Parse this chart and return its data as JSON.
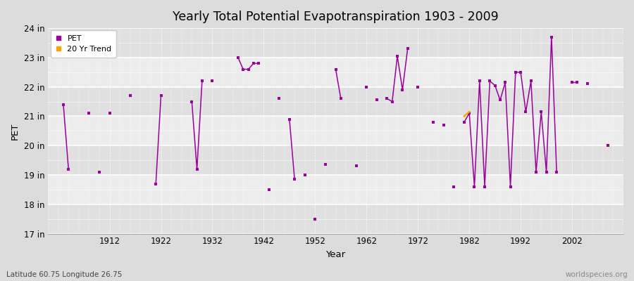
{
  "title": "Yearly Total Potential Evapotranspiration 1903 - 2009",
  "xlabel": "Year",
  "ylabel": "PET",
  "footnote_left": "Latitude 60.75 Longitude 26.75",
  "footnote_right": "worldspecies.org",
  "ylim": [
    17,
    24
  ],
  "xlim": [
    1900,
    2012
  ],
  "pet_color": "#990099",
  "trend_color": "#FFA500",
  "bg_color": "#dcdcdc",
  "plot_bg_color": "#e8e8e8",
  "legend_pet": "PET",
  "legend_trend": "20 Yr Trend",
  "ytick_vals": [
    17,
    18,
    19,
    20,
    21,
    22,
    23,
    24
  ],
  "ytick_labels": [
    "17 in",
    "18 in",
    "19 in",
    "20 in",
    "21 in",
    "22 in",
    "23 in",
    "24 in"
  ],
  "xtick_vals": [
    1912,
    1922,
    1932,
    1942,
    1952,
    1962,
    1972,
    1982,
    1992,
    2002
  ],
  "years": [
    1903,
    1904,
    1908,
    1910,
    1912,
    1916,
    1921,
    1922,
    1928,
    1929,
    1930,
    1932,
    1937,
    1938,
    1939,
    1940,
    1941,
    1943,
    1945,
    1947,
    1948,
    1950,
    1952,
    1954,
    1956,
    1957,
    1960,
    1962,
    1964,
    1966,
    1967,
    1968,
    1969,
    1970,
    1972,
    1975,
    1977,
    1979,
    1981,
    1982,
    1983,
    1984,
    1985,
    1986,
    1987,
    1988,
    1989,
    1990,
    1991,
    1992,
    1993,
    1994,
    1995,
    1996,
    1997,
    1998,
    1999,
    2002,
    2003,
    2005,
    2009
  ],
  "pet_values": [
    21.4,
    19.2,
    21.1,
    19.1,
    21.1,
    21.7,
    18.7,
    21.7,
    21.5,
    19.2,
    22.2,
    22.2,
    23.0,
    22.6,
    22.6,
    22.8,
    22.8,
    18.5,
    21.6,
    20.9,
    18.85,
    19.0,
    17.5,
    19.35,
    22.6,
    21.6,
    19.3,
    22.0,
    21.55,
    21.6,
    21.5,
    23.05,
    21.9,
    23.3,
    22.0,
    20.8,
    20.7,
    18.6,
    20.8,
    21.1,
    18.6,
    22.2,
    18.6,
    22.2,
    22.05,
    21.55,
    22.15,
    18.6,
    22.5,
    22.5,
    21.15,
    22.2,
    19.1,
    21.15,
    19.1,
    23.7,
    19.1,
    22.15,
    22.15,
    22.1,
    20.0
  ],
  "trend_years": [
    1981,
    1982
  ],
  "trend_values": [
    21.0,
    21.15
  ]
}
